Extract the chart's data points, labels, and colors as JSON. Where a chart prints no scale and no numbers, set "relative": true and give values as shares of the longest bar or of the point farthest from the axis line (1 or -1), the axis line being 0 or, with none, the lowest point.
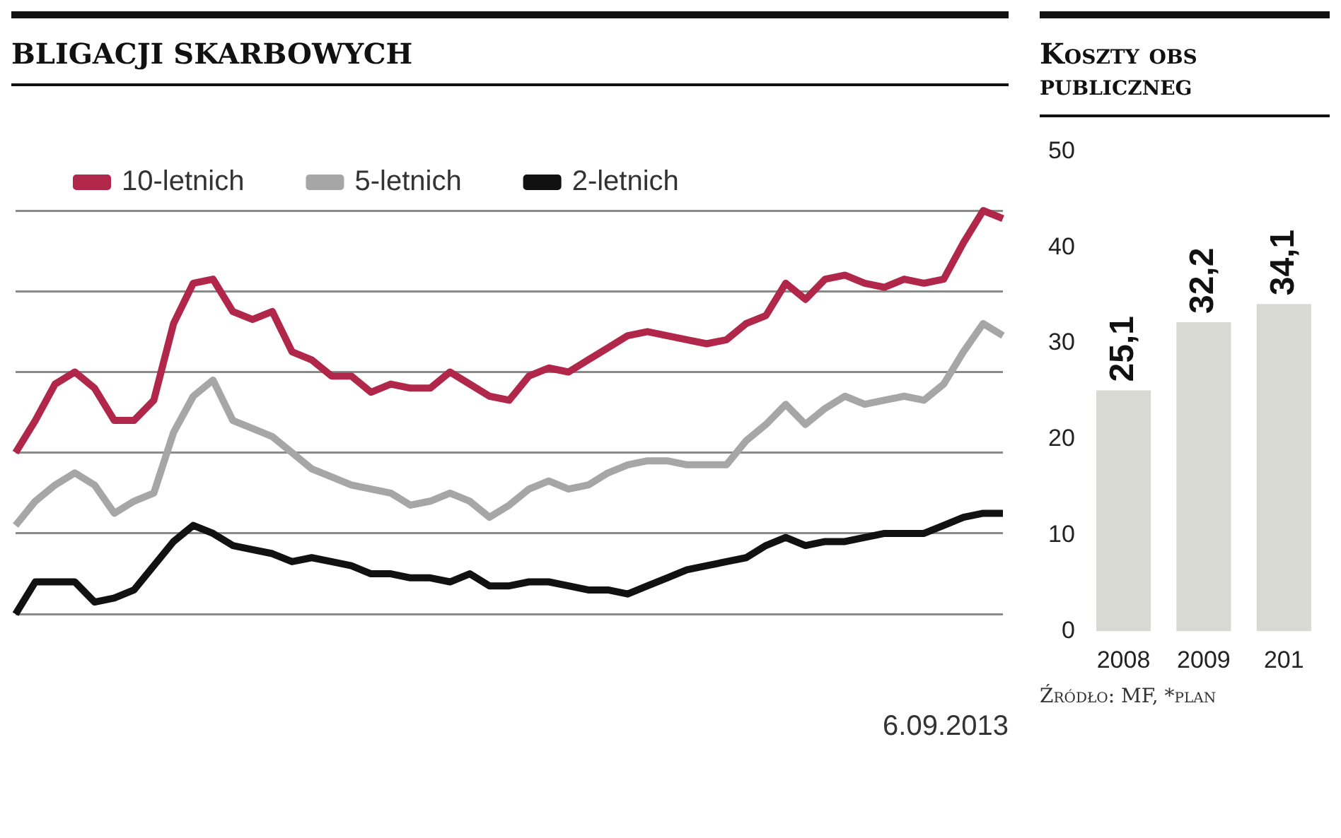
{
  "chart_data": [
    {
      "type": "line",
      "title": "BLIGACJI SKARBOWYCH",
      "relative": true,
      "grid": true,
      "legend": "top left",
      "annotations": [
        "6.09.2013"
      ],
      "categories": [
        null,
        null,
        null,
        null,
        null,
        null,
        null,
        null,
        null,
        null,
        null,
        null,
        null,
        null,
        null,
        null,
        null,
        null,
        null,
        null,
        null,
        null,
        null,
        null,
        null,
        null,
        null,
        null,
        null,
        null,
        null,
        null,
        null,
        null,
        null,
        null,
        null,
        null,
        null,
        null,
        null,
        null,
        null,
        null,
        null,
        null,
        null,
        null,
        null,
        null,
        null
      ],
      "series": [
        {
          "name": "10-letnich",
          "color": "#b0274a",
          "values": [
            0.4,
            0.48,
            0.57,
            0.6,
            0.56,
            0.48,
            0.48,
            0.53,
            0.72,
            0.82,
            0.83,
            0.75,
            0.73,
            0.75,
            0.65,
            0.63,
            0.59,
            0.59,
            0.55,
            0.57,
            0.56,
            0.56,
            0.6,
            0.57,
            0.54,
            0.53,
            0.59,
            0.61,
            0.6,
            0.63,
            0.66,
            0.69,
            0.7,
            0.69,
            0.68,
            0.67,
            0.68,
            0.72,
            0.74,
            0.82,
            0.78,
            0.83,
            0.84,
            0.82,
            0.81,
            0.83,
            0.82,
            0.83,
            0.92,
            1.0,
            0.98
          ]
        },
        {
          "name": "5-letnich",
          "color": "#a6a6a6",
          "values": [
            0.22,
            0.28,
            0.32,
            0.35,
            0.32,
            0.25,
            0.28,
            0.3,
            0.45,
            0.54,
            0.58,
            0.48,
            0.46,
            0.44,
            0.4,
            0.36,
            0.34,
            0.32,
            0.31,
            0.3,
            0.27,
            0.28,
            0.3,
            0.28,
            0.24,
            0.27,
            0.31,
            0.33,
            0.31,
            0.32,
            0.35,
            0.37,
            0.38,
            0.38,
            0.37,
            0.37,
            0.37,
            0.43,
            0.47,
            0.52,
            0.47,
            0.51,
            0.54,
            0.52,
            0.53,
            0.54,
            0.53,
            0.57,
            0.65,
            0.72,
            0.69
          ]
        },
        {
          "name": "2-letnich",
          "color": "#111111",
          "values": [
            0.0,
            0.08,
            0.08,
            0.08,
            0.03,
            0.04,
            0.06,
            0.12,
            0.18,
            0.22,
            0.2,
            0.17,
            0.16,
            0.15,
            0.13,
            0.14,
            0.13,
            0.12,
            0.1,
            0.1,
            0.09,
            0.09,
            0.08,
            0.1,
            0.07,
            0.07,
            0.08,
            0.08,
            0.07,
            0.06,
            0.06,
            0.05,
            0.07,
            0.09,
            0.11,
            0.12,
            0.13,
            0.14,
            0.17,
            0.19,
            0.17,
            0.18,
            0.18,
            0.19,
            0.2,
            0.2,
            0.2,
            0.22,
            0.24,
            0.25,
            0.25
          ]
        }
      ]
    },
    {
      "type": "bar",
      "title": "Koszty obs\npubliczneg",
      "categories": [
        "2008",
        "2009",
        "201"
      ],
      "values": [
        25.1,
        32.2,
        34.1
      ],
      "color": "#d9d9d4",
      "value_labels": [
        "25,1",
        "32,2",
        "34,1"
      ],
      "ylim": [
        0,
        50
      ],
      "yticks": [
        0,
        10,
        20,
        30,
        40,
        50
      ],
      "annotations": [
        "Źródło: MF, *plan"
      ]
    }
  ]
}
